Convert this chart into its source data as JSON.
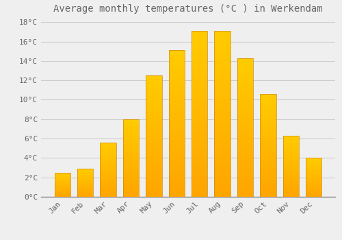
{
  "title": "Average monthly temperatures (°C ) in Werkendam",
  "months": [
    "Jan",
    "Feb",
    "Mar",
    "Apr",
    "May",
    "Jun",
    "Jul",
    "Aug",
    "Sep",
    "Oct",
    "Nov",
    "Dec"
  ],
  "temperatures": [
    2.5,
    2.9,
    5.6,
    8.0,
    12.5,
    15.1,
    17.1,
    17.1,
    14.3,
    10.6,
    6.3,
    4.0
  ],
  "bar_color_top": "#FFD966",
  "bar_color_bottom": "#FFA500",
  "background_color": "#EFEFEF",
  "grid_color": "#CCCCCC",
  "text_color": "#666666",
  "ylim_min": 0,
  "ylim_max": 18,
  "ytick_step": 2,
  "title_fontsize": 10,
  "tick_fontsize": 8,
  "figsize": [
    5.0,
    3.5
  ],
  "dpi": 100
}
